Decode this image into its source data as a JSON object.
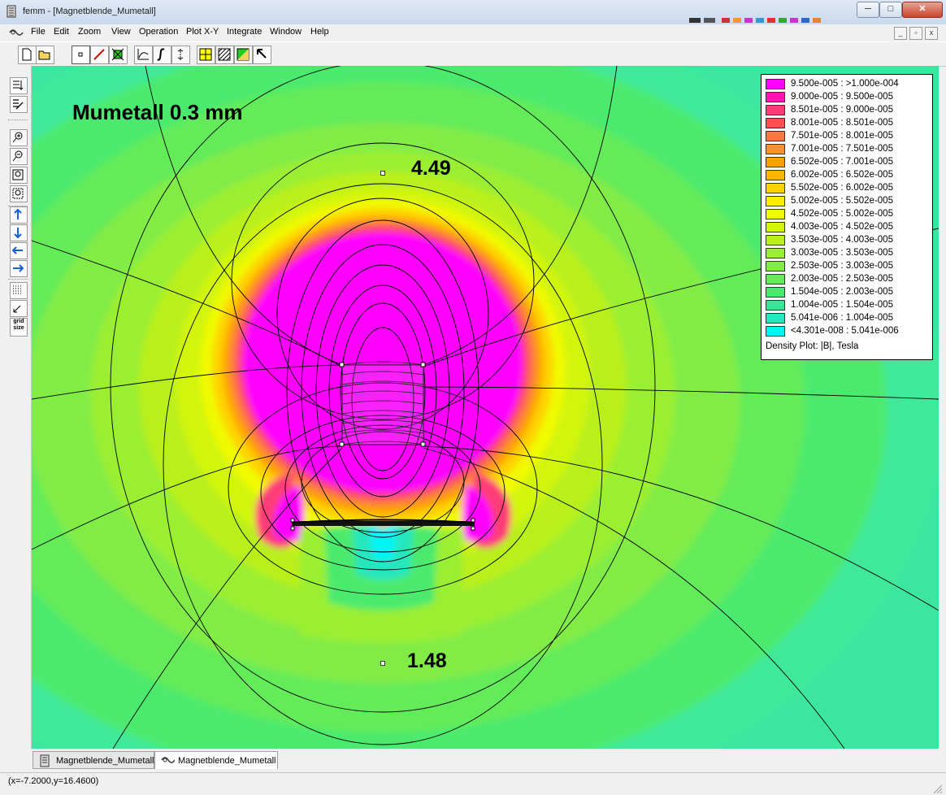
{
  "window": {
    "title": "femm - [Magnetblende_Mumetall]",
    "minimize": "─",
    "maximize": "□",
    "close": "✕"
  },
  "menu": [
    {
      "label": "File"
    },
    {
      "label": "Edit"
    },
    {
      "label": "Zoom"
    },
    {
      "label": "View"
    },
    {
      "label": "Operation"
    },
    {
      "label": "Plot X-Y"
    },
    {
      "label": "Integrate"
    },
    {
      "label": "Window"
    },
    {
      "label": "Help"
    }
  ],
  "toolbar_icons": [
    "new-file-icon",
    "open-folder-icon",
    "point-mode-icon",
    "contour-mode-icon",
    "area-mode-icon",
    "plot-xy-icon",
    "line-integral-icon",
    "block-integral-icon",
    "show-mesh-icon",
    "density-plot-icon",
    "vector-plot-icon",
    "pointer-icon"
  ],
  "left_tools": {
    "grid_label": "grid size"
  },
  "plot": {
    "title": "Mumetall 0.3 mm",
    "value_top": "4.49",
    "value_bottom": "1.48"
  },
  "legend": {
    "caption": "Density Plot: |B|, Tesla",
    "entries": [
      {
        "label": "9.500e-005 : >1.000e-004",
        "color": "#ff00ff"
      },
      {
        "label": "9.000e-005 : 9.500e-005",
        "color": "#ff14b4"
      },
      {
        "label": "8.501e-005 : 9.000e-005",
        "color": "#ff3c78"
      },
      {
        "label": "8.001e-005 : 8.501e-005",
        "color": "#ff5050"
      },
      {
        "label": "7.501e-005 : 8.001e-005",
        "color": "#ff7840"
      },
      {
        "label": "7.001e-005 : 7.501e-005",
        "color": "#ff9030"
      },
      {
        "label": "6.502e-005 : 7.001e-005",
        "color": "#ffa000"
      },
      {
        "label": "6.002e-005 : 6.502e-005",
        "color": "#ffb400"
      },
      {
        "label": "5.502e-005 : 6.002e-005",
        "color": "#ffd200"
      },
      {
        "label": "5.002e-005 : 5.502e-005",
        "color": "#ffee00"
      },
      {
        "label": "4.502e-005 : 5.002e-005",
        "color": "#f0fa00"
      },
      {
        "label": "4.003e-005 : 4.502e-005",
        "color": "#d2f50a"
      },
      {
        "label": "3.503e-005 : 4.003e-005",
        "color": "#b9f01e"
      },
      {
        "label": "3.003e-005 : 3.503e-005",
        "color": "#9bef32"
      },
      {
        "label": "2.503e-005 : 3.003e-005",
        "color": "#82ec46"
      },
      {
        "label": "2.003e-005 : 2.503e-005",
        "color": "#64eb5a"
      },
      {
        "label": "1.504e-005 : 2.003e-005",
        "color": "#4bea6e"
      },
      {
        "label": "1.004e-005 : 1.504e-005",
        "color": "#37e696"
      },
      {
        "label": "5.041e-006 : 1.004e-005",
        "color": "#28e6be"
      },
      {
        "label": "<4.301e-008 : 5.041e-006",
        "color": "#00f5f5"
      }
    ]
  },
  "tabs": [
    {
      "label": "Magnetblende_Mumetall",
      "icon": "femm-doc-icon"
    },
    {
      "label": "Magnetblende_Mumetall",
      "icon": "femm-view-icon"
    }
  ],
  "status": {
    "coords": "(x=-7.2000,y=16.4600)"
  }
}
